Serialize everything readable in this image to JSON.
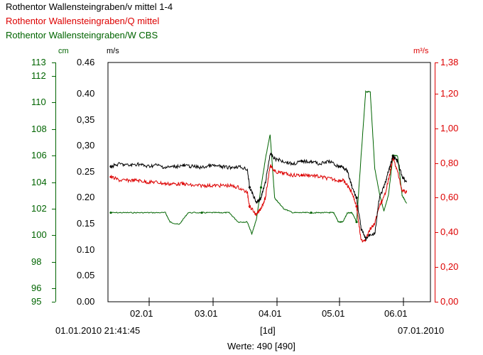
{
  "legend": [
    {
      "text": "Rothentor Wallensteingraben/v mittel 1-4",
      "color": "#000000"
    },
    {
      "text": "Rothentor Wallensteingraben/Q mittel",
      "color": "#dd0000"
    },
    {
      "text": "Rothentor Wallensteingraben/W CBS",
      "color": "#006400"
    }
  ],
  "units": {
    "w": "cm",
    "v": "m/s",
    "q": "m³/s"
  },
  "chart_data": {
    "type": "line",
    "x_range": [
      "01.01.2010 21:41:45",
      "07.01.2010"
    ],
    "x_ticks": [
      "02.01",
      "03.01",
      "04.01",
      "05.01",
      "06.01"
    ],
    "footer": {
      "start": "01.01.2010 21:41:45",
      "interval": "[1d]",
      "end": "07.01.2010",
      "count": "Werte: 490 [490]"
    },
    "axes": {
      "w": {
        "label": "cm",
        "ticks": [
          "113",
          "112",
          "110",
          "108",
          "106",
          "104",
          "102",
          "100",
          "98",
          "96",
          "95"
        ],
        "range": [
          95,
          113
        ]
      },
      "v": {
        "label": "m/s",
        "ticks": [
          "0.46",
          "0.40",
          "0,35",
          "0,30",
          "0.25",
          "0.20",
          "0.15",
          "0.10",
          "0.05",
          "0.00"
        ],
        "range": [
          0,
          0.46
        ]
      },
      "q": {
        "label": "m³/s",
        "ticks": [
          "1,38",
          "1,20",
          "1,00",
          "0,80",
          "0,60",
          "0,40",
          "0,20",
          "0,00"
        ],
        "range": [
          0,
          1.38
        ]
      }
    },
    "series": [
      {
        "name": "Rothentor Wallensteingraben/v mittel 1-4",
        "axis": "v",
        "color": "#000000",
        "x": [
          0,
          0.2,
          0.4,
          0.6,
          0.8,
          1.0,
          1.2,
          1.4,
          1.6,
          1.8,
          2.0,
          2.2,
          2.4,
          2.6,
          2.8,
          3.0,
          3.05,
          3.2,
          3.3,
          3.4,
          3.5,
          3.6,
          3.8,
          4.0,
          4.2,
          4.4,
          4.6,
          4.8,
          5.0,
          5.1,
          5.2,
          5.3,
          5.4,
          5.5,
          5.6,
          5.7,
          5.8,
          5.9,
          6.0,
          6.1,
          6.2,
          6.3,
          6.4,
          6.5
        ],
        "y": [
          0.26,
          0.265,
          0.262,
          0.265,
          0.26,
          0.263,
          0.258,
          0.26,
          0.262,
          0.26,
          0.258,
          0.262,
          0.26,
          0.258,
          0.26,
          0.255,
          0.22,
          0.19,
          0.2,
          0.23,
          0.285,
          0.275,
          0.27,
          0.265,
          0.27,
          0.27,
          0.265,
          0.27,
          0.26,
          0.26,
          0.25,
          0.22,
          0.2,
          0.14,
          0.12,
          0.13,
          0.13,
          0.2,
          0.22,
          0.25,
          0.28,
          0.27,
          0.24,
          0.23
        ]
      },
      {
        "name": "Rothentor Wallensteingraben/Q mittel",
        "axis": "q",
        "color": "#dd0000",
        "x": [
          0,
          0.2,
          0.4,
          0.6,
          0.8,
          1.0,
          1.2,
          1.4,
          1.6,
          1.8,
          2.0,
          2.2,
          2.4,
          2.6,
          2.8,
          3.0,
          3.05,
          3.2,
          3.3,
          3.4,
          3.5,
          3.6,
          3.8,
          4.0,
          4.2,
          4.4,
          4.6,
          4.8,
          5.0,
          5.1,
          5.2,
          5.3,
          5.4,
          5.5,
          5.6,
          5.7,
          5.8,
          5.9,
          6.0,
          6.1,
          6.2,
          6.3,
          6.4,
          6.5
        ],
        "y": [
          0.72,
          0.7,
          0.7,
          0.7,
          0.69,
          0.69,
          0.68,
          0.68,
          0.68,
          0.67,
          0.67,
          0.67,
          0.67,
          0.67,
          0.66,
          0.63,
          0.55,
          0.5,
          0.54,
          0.6,
          0.79,
          0.75,
          0.74,
          0.73,
          0.73,
          0.73,
          0.72,
          0.71,
          0.7,
          0.7,
          0.67,
          0.63,
          0.55,
          0.35,
          0.36,
          0.42,
          0.45,
          0.55,
          0.6,
          0.7,
          0.83,
          0.75,
          0.64,
          0.63
        ]
      },
      {
        "name": "Rothentor Wallensteingraben/W CBS",
        "axis": "w",
        "color": "#006400",
        "x": [
          0,
          0.3,
          0.6,
          0.9,
          1.2,
          1.3,
          1.5,
          1.7,
          2.0,
          2.2,
          2.4,
          2.6,
          2.8,
          3.0,
          3.1,
          3.2,
          3.3,
          3.4,
          3.5,
          3.6,
          3.7,
          3.8,
          4.0,
          4.2,
          4.4,
          4.6,
          4.8,
          4.9,
          5.0,
          5.1,
          5.2,
          5.3,
          5.4,
          5.5,
          5.6,
          5.7,
          5.8,
          5.9,
          6.0,
          6.1,
          6.2,
          6.3,
          6.4,
          6.5
        ],
        "y": [
          101.7,
          101.7,
          101.7,
          101.7,
          101.7,
          101,
          100.8,
          101.7,
          101.7,
          101.7,
          101.7,
          101.7,
          101,
          101,
          100.1,
          101.2,
          103.6,
          105.8,
          107.6,
          102.8,
          102.4,
          102.0,
          101.7,
          101.7,
          101.7,
          101.7,
          101.7,
          101.7,
          101,
          101,
          101.7,
          101.7,
          101,
          106,
          110.8,
          110.8,
          105,
          103.2,
          101.8,
          103,
          106,
          106,
          103,
          102.4
        ]
      }
    ]
  }
}
